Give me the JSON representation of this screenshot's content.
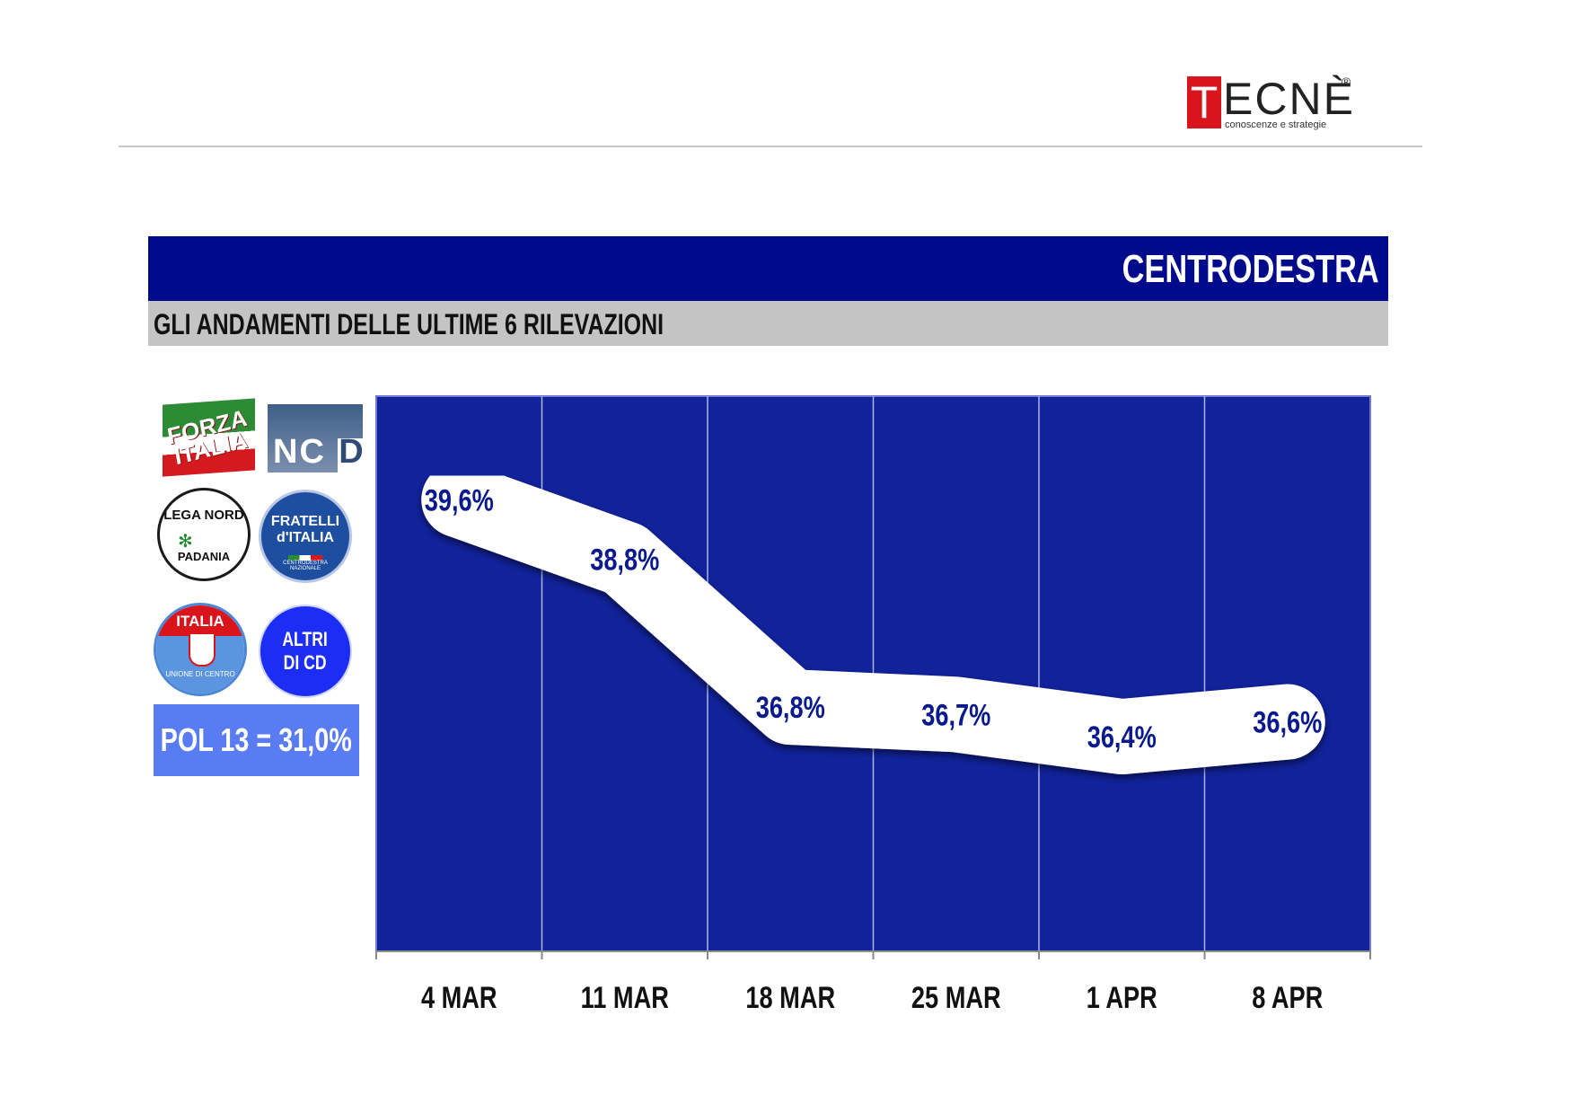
{
  "logo": {
    "letter": "T",
    "rest": "ECNÈ",
    "registered": "®",
    "tagline": "conoscenze e strategie"
  },
  "header": {
    "title": "CENTRODESTRA",
    "subtitle": "GLI ANDAMENTI DELLE ULTIME 6 RILEVAZIONI"
  },
  "parties": {
    "forza_italia": "FORZA\nITALIA",
    "ncd": "NC",
    "ncd_d": "D",
    "lega_top": "LEGA NORD",
    "lega_bottom": "PADANIA",
    "fdi": "FRATELLI\nd'ITALIA",
    "fdi_bottom": "CENTRODESTRA NAZIONALE",
    "udc_top": "ITALIA",
    "udc_bottom": "UNIONE DI CENTRO",
    "altri": "ALTRI\nDI CD"
  },
  "pol13": "POL 13 = 31,0%",
  "colors": {
    "banner": "#000b8c",
    "plot_bg": "#11229b",
    "ribbon": "#ffffff",
    "label": "#0a1a8c",
    "pol_box": "#5a7cf2",
    "logo_red": "#d9141b"
  },
  "chart_data": {
    "type": "line",
    "categories": [
      "4 MAR",
      "11 MAR",
      "18 MAR",
      "25 MAR",
      "1 APR",
      "8 APR"
    ],
    "series": [
      {
        "values": [
          39.6,
          38.8,
          36.8,
          36.7,
          36.4,
          36.6
        ]
      }
    ],
    "data_labels": [
      "39,6%",
      "38,8%",
      "36,8%",
      "36,7%",
      "36,4%",
      "36,6%"
    ],
    "title": "CENTRODESTRA",
    "ylim": [
      33.5,
      41
    ],
    "grid": "vertical"
  }
}
